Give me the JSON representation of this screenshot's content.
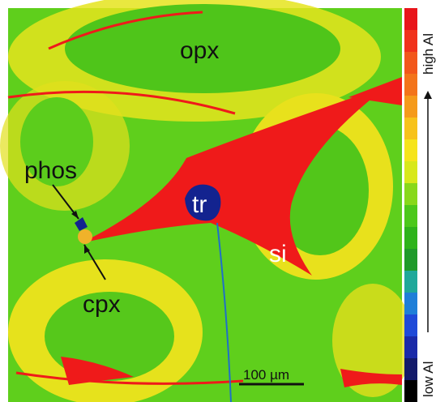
{
  "labels": {
    "opx": "opx",
    "phos": "phos",
    "tr": "tr",
    "si": "si",
    "cpx": "cpx"
  },
  "scale_bar": "100 µm",
  "colorbar": {
    "high": "high Al",
    "low": "low Al"
  }
}
